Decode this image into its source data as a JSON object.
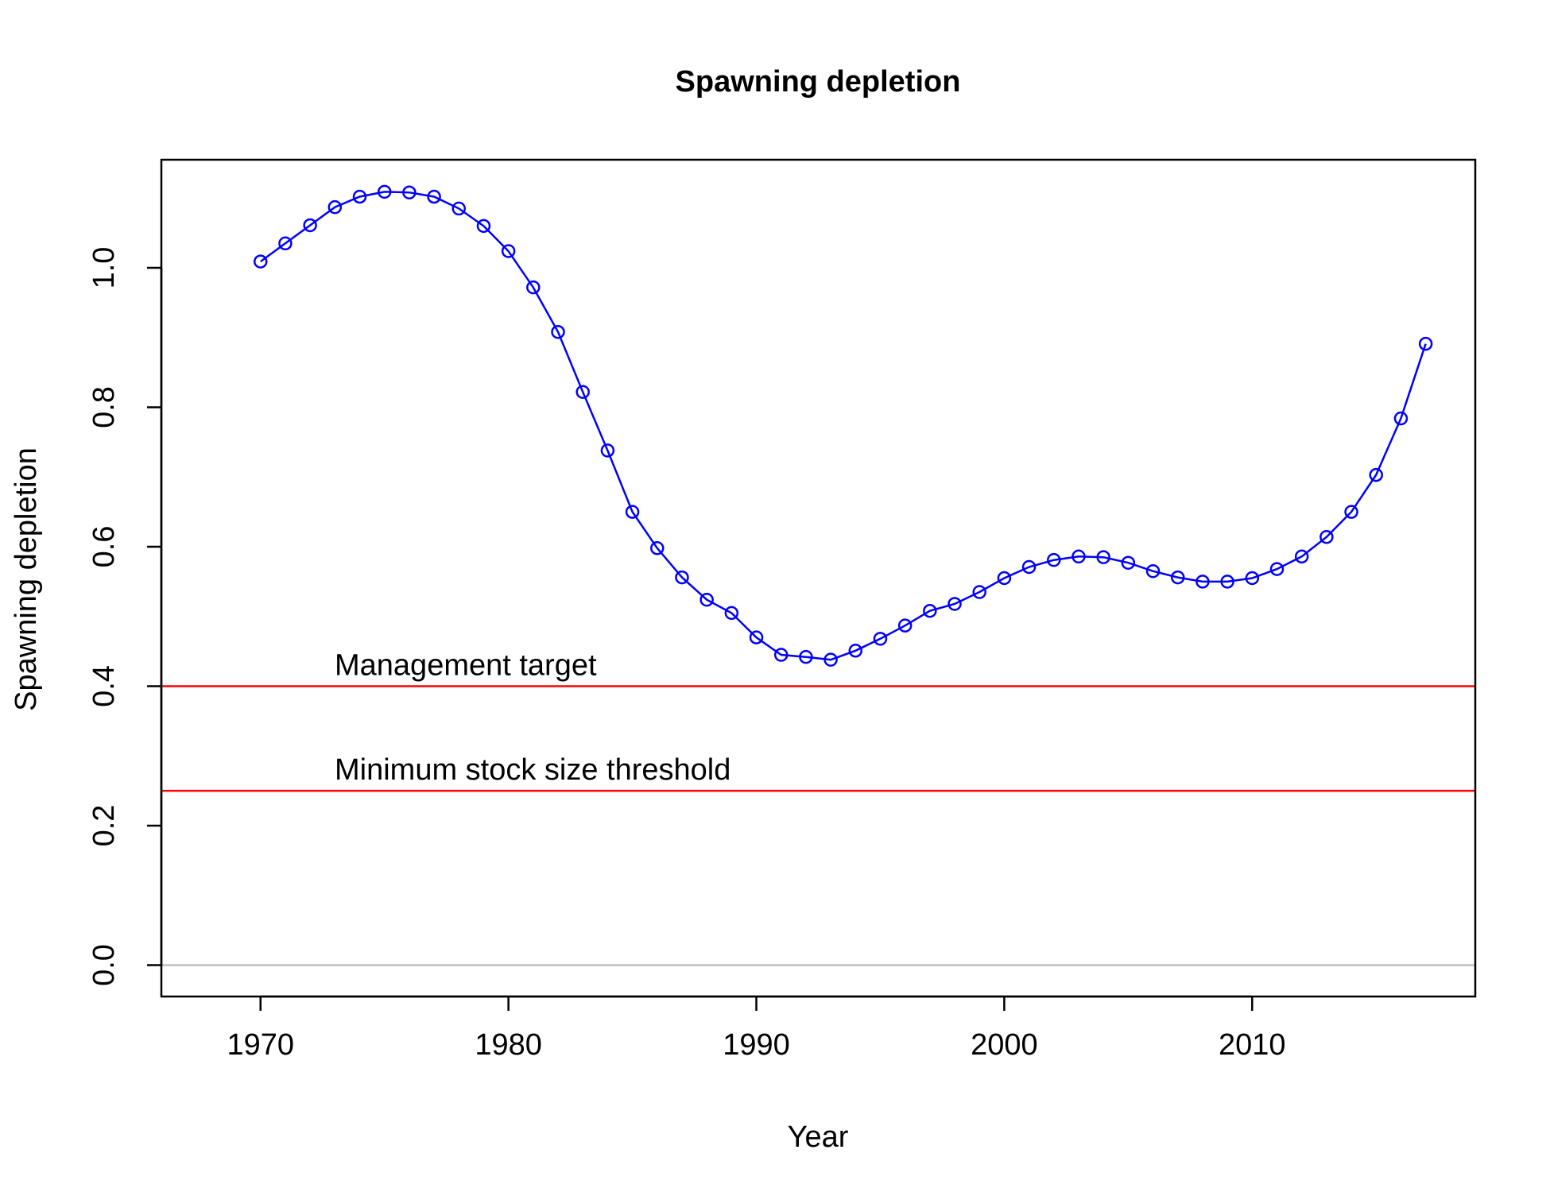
{
  "chart_data": {
    "type": "line",
    "title": "Spawning depletion",
    "xlabel": "Year",
    "ylabel": "Spawning depletion",
    "xlim": [
      1966,
      2019
    ],
    "ylim": [
      -0.045,
      1.155
    ],
    "xticks": [
      1970,
      1980,
      1990,
      2000,
      2010
    ],
    "yticks": [
      0.0,
      0.2,
      0.4,
      0.6,
      0.8,
      1.0
    ],
    "ytick_labels": [
      "0.0",
      "0.2",
      "0.4",
      "0.6",
      "0.8",
      "1.0"
    ],
    "grid": false,
    "series": [
      {
        "color": "#0000ff",
        "marker": "open-circle",
        "x": [
          1970,
          1971,
          1972,
          1973,
          1974,
          1975,
          1976,
          1977,
          1978,
          1979,
          1980,
          1981,
          1982,
          1983,
          1984,
          1985,
          1986,
          1987,
          1988,
          1989,
          1990,
          1991,
          1992,
          1993,
          1994,
          1995,
          1996,
          1997,
          1998,
          1999,
          2000,
          2001,
          2002,
          2003,
          2004,
          2005,
          2006,
          2007,
          2008,
          2009,
          2010,
          2011,
          2012,
          2013,
          2014,
          2015,
          2016,
          2017
        ],
        "y": [
          1.009,
          1.035,
          1.061,
          1.087,
          1.102,
          1.109,
          1.108,
          1.102,
          1.085,
          1.06,
          1.024,
          0.972,
          0.908,
          0.822,
          0.738,
          0.65,
          0.598,
          0.556,
          0.524,
          0.505,
          0.47,
          0.445,
          0.442,
          0.438,
          0.451,
          0.468,
          0.487,
          0.508,
          0.518,
          0.535,
          0.555,
          0.571,
          0.581,
          0.586,
          0.585,
          0.577,
          0.565,
          0.556,
          0.55,
          0.55,
          0.555,
          0.568,
          0.586,
          0.614,
          0.65,
          0.703,
          0.784,
          0.891
        ]
      }
    ],
    "reference_lines": [
      {
        "y": 0.4,
        "color": "#ff0000",
        "label": "Management target"
      },
      {
        "y": 0.25,
        "color": "#ff0000",
        "label": "Minimum stock size threshold"
      },
      {
        "y": 0.0,
        "color": "#bebebe",
        "label": ""
      }
    ]
  }
}
